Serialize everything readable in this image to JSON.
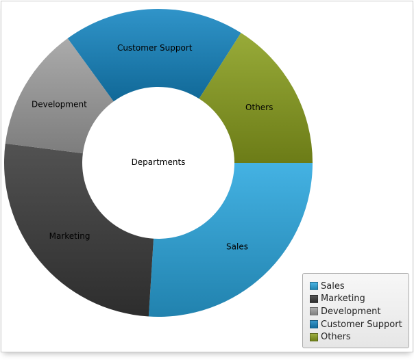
{
  "chart_data": {
    "type": "pie",
    "variant": "donut",
    "center_label": "Departments",
    "slices": [
      {
        "label": "Sales",
        "value": 26,
        "color": "#2aa7df"
      },
      {
        "label": "Marketing",
        "value": 26,
        "color": "#3a3a3a"
      },
      {
        "label": "Development",
        "value": 13,
        "color": "#a0a0a0"
      },
      {
        "label": "Customer Support",
        "value": 19,
        "color": "#1485c2"
      },
      {
        "label": "Others",
        "value": 16,
        "color": "#8a9f1e"
      }
    ],
    "legend": {
      "position": "bottom-right",
      "entries": [
        "Sales",
        "Marketing",
        "Development",
        "Customer Support",
        "Others"
      ]
    }
  }
}
